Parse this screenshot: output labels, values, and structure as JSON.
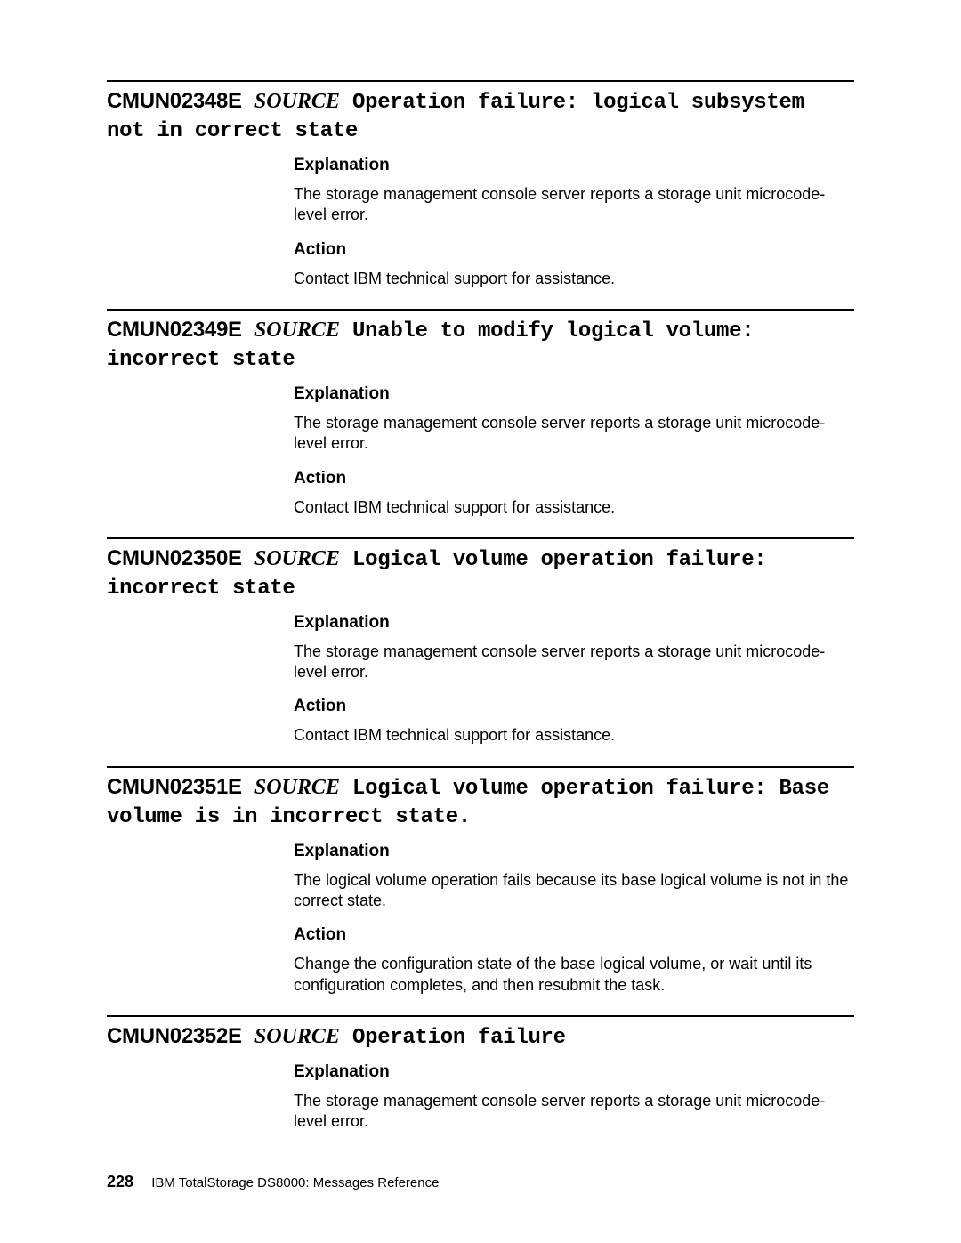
{
  "source_label": "SOURCE",
  "labels": {
    "explanation": "Explanation",
    "action": "Action"
  },
  "common_explanation": "The storage management console server reports a storage unit microcode-level error.",
  "common_action": "Contact IBM technical support for assistance.",
  "entries": [
    {
      "code": "CMUN02348E",
      "title_rest": "Operation failure: logical subsystem not in correct state",
      "explanation": "The storage management console server reports a storage unit microcode-level error.",
      "action": "Contact IBM technical support for assistance."
    },
    {
      "code": "CMUN02349E",
      "title_rest": "Unable to modify logical volume: incorrect state",
      "explanation": "The storage management console server reports a storage unit microcode-level error.",
      "action": "Contact IBM technical support for assistance."
    },
    {
      "code": "CMUN02350E",
      "title_rest": "Logical volume operation failure: incorrect state",
      "explanation": "The storage management console server reports a storage unit microcode-level error.",
      "action": "Contact IBM technical support for assistance."
    },
    {
      "code": "CMUN02351E",
      "title_rest": "Logical volume operation failure: Base volume is in incorrect state.",
      "explanation": "The logical volume operation fails because its base logical volume is not in the correct state.",
      "action": "Change the configuration state of the base logical volume, or wait until its configuration completes, and then resubmit the task."
    },
    {
      "code": "CMUN02352E",
      "title_rest": "Operation failure",
      "explanation": "The storage management console server reports a storage unit microcode-level error.",
      "action": null
    }
  ],
  "footer": {
    "page_number": "228",
    "doc_title": "IBM TotalStorage DS8000:  Messages Reference"
  }
}
